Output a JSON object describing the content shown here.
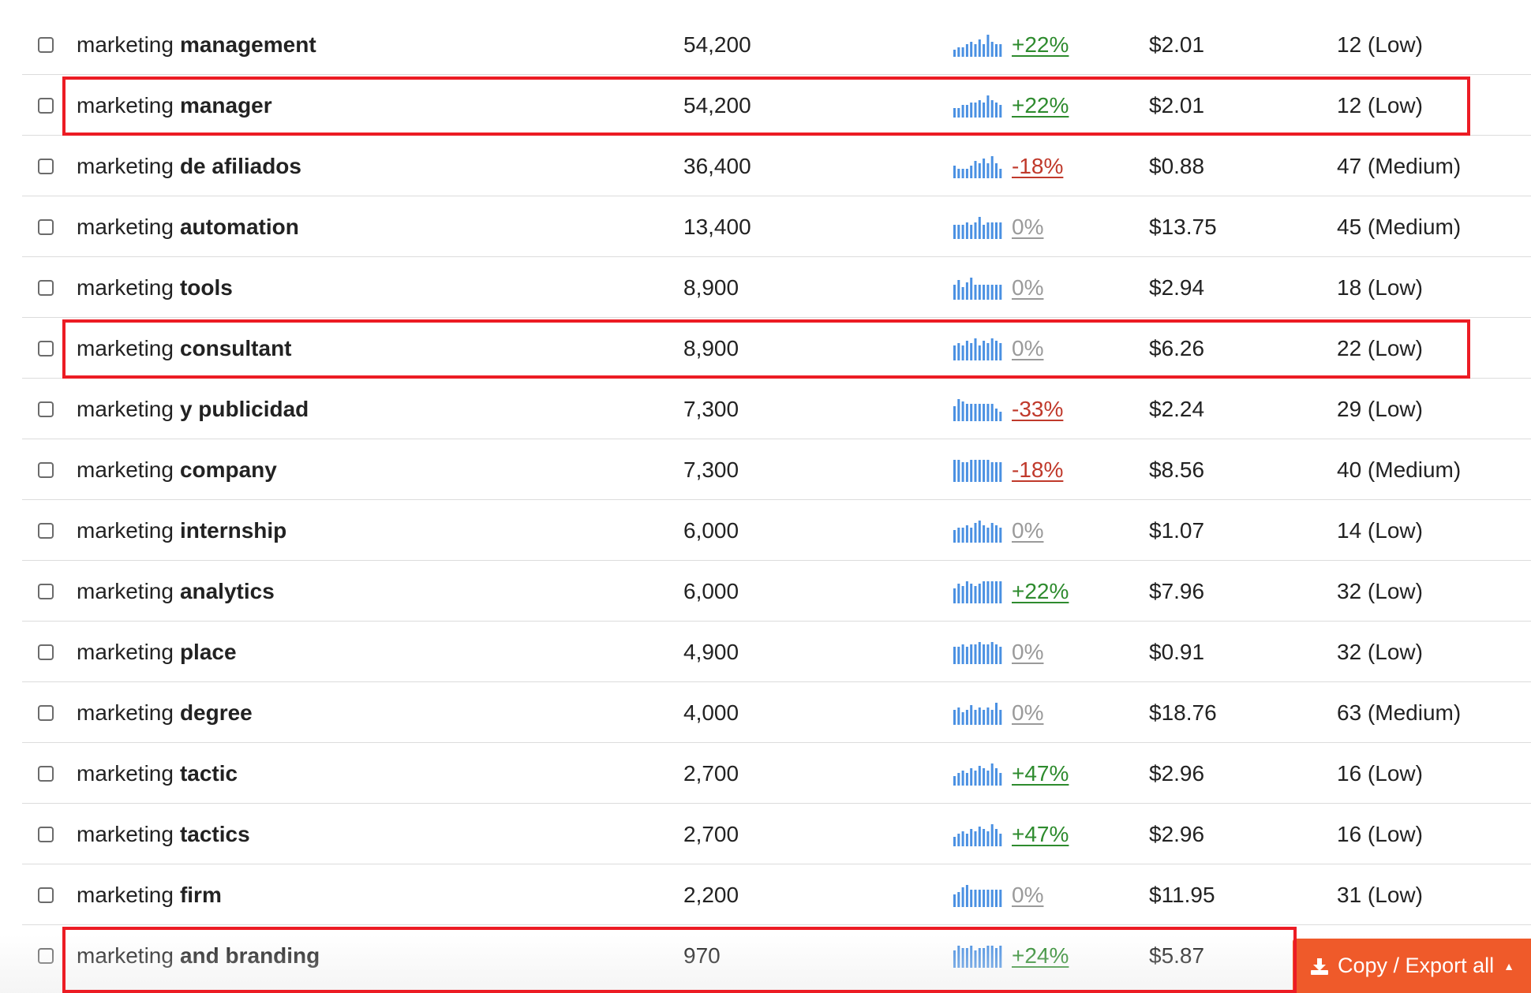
{
  "colors": {
    "positive": "#2e8b2e",
    "negative": "#c0392b",
    "neutral": "#9a9a9a",
    "sparkline": "#4a90e2",
    "highlight": "#ec1c24",
    "export_button": "#ef5a2a"
  },
  "rows": [
    {
      "keyword": "marketing",
      "suffix": "management",
      "volume": "54,200",
      "trend": "+22%",
      "trend_dir": "positive",
      "cpc": "$2.01",
      "competition": "12 (Low)",
      "spark": [
        3,
        4,
        4,
        5,
        6,
        5,
        7,
        5,
        9,
        6,
        5,
        5
      ],
      "highlighted": false
    },
    {
      "keyword": "marketing",
      "suffix": "manager",
      "volume": "54,200",
      "trend": "+22%",
      "trend_dir": "positive",
      "cpc": "$2.01",
      "competition": "12 (Low)",
      "spark": [
        4,
        4,
        5,
        5,
        6,
        6,
        7,
        6,
        9,
        7,
        6,
        5
      ],
      "highlighted": true
    },
    {
      "keyword": "marketing",
      "suffix": "de afiliados",
      "volume": "36,400",
      "trend": "-18%",
      "trend_dir": "negative",
      "cpc": "$0.88",
      "competition": "47 (Medium)",
      "spark": [
        5,
        4,
        4,
        4,
        5,
        7,
        6,
        8,
        6,
        9,
        6,
        4
      ],
      "highlighted": false
    },
    {
      "keyword": "marketing",
      "suffix": "automation",
      "volume": "13,400",
      "trend": "0%",
      "trend_dir": "neutral",
      "cpc": "$13.75",
      "competition": "45 (Medium)",
      "spark": [
        5,
        5,
        5,
        6,
        5,
        6,
        8,
        5,
        6,
        6,
        6,
        6
      ],
      "highlighted": false
    },
    {
      "keyword": "marketing",
      "suffix": "tools",
      "volume": "8,900",
      "trend": "0%",
      "trend_dir": "neutral",
      "cpc": "$2.94",
      "competition": "18 (Low)",
      "spark": [
        6,
        8,
        5,
        7,
        9,
        6,
        6,
        6,
        6,
        6,
        6,
        6
      ],
      "highlighted": false
    },
    {
      "keyword": "marketing",
      "suffix": "consultant",
      "volume": "8,900",
      "trend": "0%",
      "trend_dir": "neutral",
      "cpc": "$6.26",
      "competition": "22 (Low)",
      "spark": [
        6,
        7,
        6,
        8,
        7,
        9,
        6,
        8,
        7,
        9,
        8,
        7
      ],
      "highlighted": true
    },
    {
      "keyword": "marketing",
      "suffix": "y publicidad",
      "volume": "7,300",
      "trend": "-33%",
      "trend_dir": "negative",
      "cpc": "$2.24",
      "competition": "29 (Low)",
      "spark": [
        6,
        9,
        8,
        7,
        7,
        7,
        7,
        7,
        7,
        7,
        5,
        4
      ],
      "highlighted": false
    },
    {
      "keyword": "marketing",
      "suffix": "company",
      "volume": "7,300",
      "trend": "-18%",
      "trend_dir": "negative",
      "cpc": "$8.56",
      "competition": "40 (Medium)",
      "spark": [
        9,
        9,
        8,
        8,
        9,
        9,
        9,
        9,
        9,
        8,
        8,
        8
      ],
      "highlighted": false
    },
    {
      "keyword": "marketing",
      "suffix": "internship",
      "volume": "6,000",
      "trend": "0%",
      "trend_dir": "neutral",
      "cpc": "$1.07",
      "competition": "14 (Low)",
      "spark": [
        5,
        6,
        6,
        7,
        6,
        8,
        9,
        7,
        6,
        8,
        7,
        6
      ],
      "highlighted": false
    },
    {
      "keyword": "marketing",
      "suffix": "analytics",
      "volume": "6,000",
      "trend": "+22%",
      "trend_dir": "positive",
      "cpc": "$7.96",
      "competition": "32 (Low)",
      "spark": [
        6,
        8,
        7,
        9,
        8,
        7,
        8,
        9,
        9,
        9,
        9,
        9
      ],
      "highlighted": false
    },
    {
      "keyword": "marketing",
      "suffix": "place",
      "volume": "4,900",
      "trend": "0%",
      "trend_dir": "neutral",
      "cpc": "$0.91",
      "competition": "32 (Low)",
      "spark": [
        7,
        7,
        8,
        7,
        8,
        8,
        9,
        8,
        8,
        9,
        8,
        7
      ],
      "highlighted": false
    },
    {
      "keyword": "marketing",
      "suffix": "degree",
      "volume": "4,000",
      "trend": "0%",
      "trend_dir": "neutral",
      "cpc": "$18.76",
      "competition": "63 (Medium)",
      "spark": [
        6,
        7,
        5,
        6,
        8,
        6,
        7,
        6,
        7,
        6,
        9,
        6
      ],
      "highlighted": false
    },
    {
      "keyword": "marketing",
      "suffix": "tactic",
      "volume": "2,700",
      "trend": "+47%",
      "trend_dir": "positive",
      "cpc": "$2.96",
      "competition": "16 (Low)",
      "spark": [
        4,
        5,
        6,
        5,
        7,
        6,
        8,
        7,
        6,
        9,
        7,
        5
      ],
      "highlighted": false
    },
    {
      "keyword": "marketing",
      "suffix": "tactics",
      "volume": "2,700",
      "trend": "+47%",
      "trend_dir": "positive",
      "cpc": "$2.96",
      "competition": "16 (Low)",
      "spark": [
        4,
        5,
        6,
        5,
        7,
        6,
        8,
        7,
        6,
        9,
        7,
        5
      ],
      "highlighted": false
    },
    {
      "keyword": "marketing",
      "suffix": "firm",
      "volume": "2,200",
      "trend": "0%",
      "trend_dir": "neutral",
      "cpc": "$11.95",
      "competition": "31 (Low)",
      "spark": [
        5,
        6,
        8,
        9,
        7,
        7,
        7,
        7,
        7,
        7,
        7,
        7
      ],
      "highlighted": false
    },
    {
      "keyword": "marketing",
      "suffix": "and branding",
      "volume": "970",
      "trend": "+24%",
      "trend_dir": "positive",
      "cpc": "$5.87",
      "competition": "",
      "spark": [
        7,
        9,
        8,
        8,
        9,
        7,
        8,
        8,
        9,
        9,
        8,
        9
      ],
      "highlighted": true
    }
  ],
  "export_button": {
    "label": "Copy / Export all",
    "icon": "export-icon",
    "caret": "▲"
  }
}
